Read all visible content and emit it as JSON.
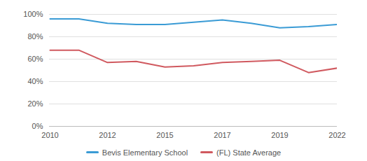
{
  "chart_data": {
    "type": "line",
    "categories": [
      "2010",
      null,
      "2012",
      null,
      "2015",
      null,
      "2017",
      null,
      "2019",
      null,
      "2022"
    ],
    "series": [
      {
        "name": "Bevis Elementary School",
        "color": "#3a9bd5",
        "values": [
          96,
          96,
          92,
          91,
          91,
          93,
          95,
          92,
          88,
          89,
          91
        ]
      },
      {
        "name": "(FL) State Average",
        "color": "#d0595f",
        "values": [
          68,
          68,
          57,
          58,
          53,
          54,
          57,
          58,
          59,
          48,
          52
        ]
      }
    ],
    "ylim": [
      0,
      100
    ],
    "yticks": [
      {
        "value": 0,
        "label": "0%"
      },
      {
        "value": 20,
        "label": "20%"
      },
      {
        "value": 40,
        "label": "40%"
      },
      {
        "value": 60,
        "label": "60%"
      },
      {
        "value": 80,
        "label": "80%"
      },
      {
        "value": 100,
        "label": "100%"
      }
    ],
    "grid": true,
    "legend": "bottom"
  }
}
